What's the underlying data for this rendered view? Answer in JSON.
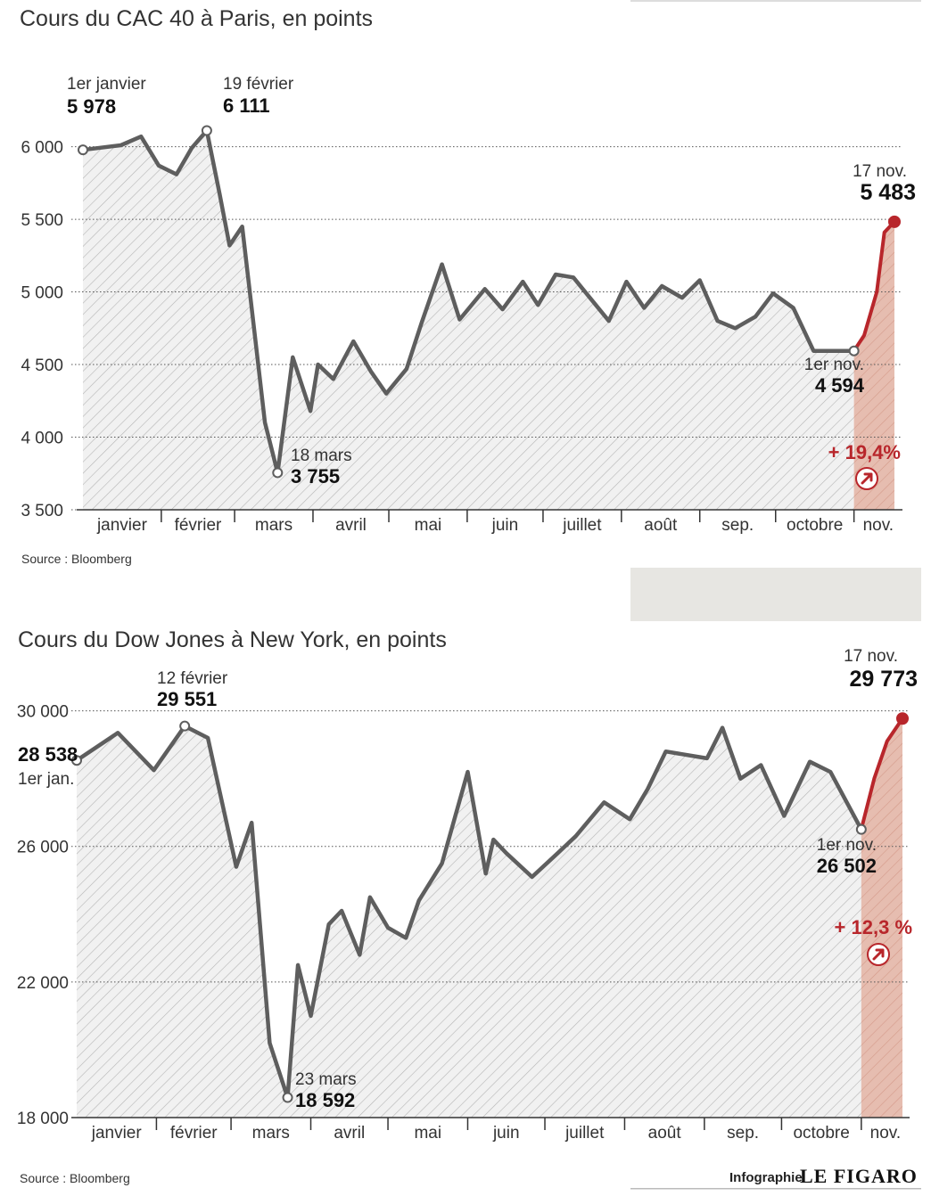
{
  "chart_data": [
    {
      "type": "area",
      "title": "Cours du CAC 40 à Paris, en points",
      "ylim": [
        3500,
        6200
      ],
      "yticks": [
        {
          "v": 3500,
          "label": "3 500"
        },
        {
          "v": 4000,
          "label": "4 000"
        },
        {
          "v": 4500,
          "label": "4 500"
        },
        {
          "v": 5000,
          "label": "5 000"
        },
        {
          "v": 5500,
          "label": "5 500"
        },
        {
          "v": 6000,
          "label": "6 000"
        }
      ],
      "months": [
        "janvier",
        "février",
        "mars",
        "avril",
        "mai",
        "juin",
        "juillet",
        "août",
        "sep.",
        "octobre",
        "nov."
      ],
      "grid": true,
      "series": [
        {
          "dates": [
            "2020-01-01",
            "2020-01-16",
            "2020-01-24",
            "2020-01-31",
            "2020-02-07",
            "2020-02-13",
            "2020-02-19",
            "2020-02-24",
            "2020-02-28",
            "2020-03-04",
            "2020-03-09",
            "2020-03-13",
            "2020-03-18",
            "2020-03-24",
            "2020-03-31",
            "2020-04-03",
            "2020-04-09",
            "2020-04-17",
            "2020-04-24",
            "2020-04-30",
            "2020-05-08",
            "2020-05-14",
            "2020-05-22",
            "2020-05-29",
            "2020-06-08",
            "2020-06-15",
            "2020-06-23",
            "2020-06-29",
            "2020-07-06",
            "2020-07-13",
            "2020-07-20",
            "2020-07-27",
            "2020-08-03",
            "2020-08-10",
            "2020-08-17",
            "2020-08-25",
            "2020-09-01",
            "2020-09-08",
            "2020-09-15",
            "2020-09-23",
            "2020-09-30",
            "2020-10-08",
            "2020-10-16",
            "2020-10-23",
            "2020-10-29",
            "2020-11-01"
          ],
          "values": [
            5978,
            6010,
            6070,
            5870,
            5810,
            5990,
            6111,
            5680,
            5320,
            5450,
            4700,
            4100,
            3755,
            4550,
            4180,
            4500,
            4400,
            4660,
            4450,
            4300,
            4470,
            4790,
            5190,
            4810,
            5020,
            4880,
            5070,
            4910,
            5120,
            5100,
            4950,
            4800,
            5070,
            4890,
            5040,
            4960,
            5080,
            4800,
            4750,
            4830,
            4990,
            4890,
            4594,
            4594,
            4594,
            4594
          ]
        },
        {
          "name": "hausse",
          "dates": [
            "2020-11-01",
            "2020-11-05",
            "2020-11-10",
            "2020-11-13",
            "2020-11-17"
          ],
          "values": [
            4594,
            4700,
            5000,
            5410,
            5483
          ]
        }
      ],
      "annotations": [
        {
          "date_label": "1er janvier",
          "value_label": "5 978"
        },
        {
          "date_label": "19 février",
          "value_label": "6 111"
        },
        {
          "date_label": "18 mars",
          "value_label": "3 755"
        },
        {
          "date_label": "1er nov.",
          "value_label": "4 594"
        },
        {
          "date_label": "17 nov.",
          "value_label": "5 483"
        }
      ],
      "change": "+ 19,4%",
      "source": "Source : Bloomberg"
    },
    {
      "type": "area",
      "title": "Cours du Dow Jones à New York, en points",
      "ylim": [
        18000,
        30200
      ],
      "yticks": [
        {
          "v": 18000,
          "label": "18 000"
        },
        {
          "v": 22000,
          "label": "22 000"
        },
        {
          "v": 26000,
          "label": "26 000"
        },
        {
          "v": 30000,
          "label": "30 000"
        }
      ],
      "months": [
        "janvier",
        "février",
        "mars",
        "avril",
        "mai",
        "juin",
        "juillet",
        "août",
        "sep.",
        "octobre",
        "nov."
      ],
      "grid": true,
      "series": [
        {
          "dates": [
            "2020-01-01",
            "2020-01-17",
            "2020-01-31",
            "2020-02-12",
            "2020-02-21",
            "2020-03-03",
            "2020-03-09",
            "2020-03-16",
            "2020-03-23",
            "2020-03-27",
            "2020-04-01",
            "2020-04-08",
            "2020-04-13",
            "2020-04-20",
            "2020-04-24",
            "2020-05-01",
            "2020-05-08",
            "2020-05-13",
            "2020-05-22",
            "2020-06-01",
            "2020-06-08",
            "2020-06-11",
            "2020-06-16",
            "2020-06-26",
            "2020-07-06",
            "2020-07-13",
            "2020-07-24",
            "2020-08-03",
            "2020-08-10",
            "2020-08-17",
            "2020-09-02",
            "2020-09-08",
            "2020-09-15",
            "2020-09-23",
            "2020-10-02",
            "2020-10-12",
            "2020-10-20",
            "2020-11-01"
          ],
          "values": [
            28538,
            29350,
            28250,
            29551,
            29200,
            25400,
            26700,
            20200,
            18592,
            22500,
            21000,
            23700,
            24100,
            22800,
            24500,
            23600,
            23300,
            24400,
            25500,
            28200,
            25200,
            26200,
            25800,
            25100,
            25800,
            26300,
            27300,
            26800,
            27700,
            28800,
            28600,
            29500,
            28000,
            28400,
            26900,
            28500,
            28200,
            26502
          ]
        },
        {
          "name": "hausse",
          "dates": [
            "2020-11-01",
            "2020-11-06",
            "2020-11-11",
            "2020-11-17"
          ],
          "values": [
            26502,
            28000,
            29100,
            29773
          ]
        }
      ],
      "annotations": [
        {
          "date_label": "1er jan.",
          "value_label": "28 538"
        },
        {
          "date_label": "12 février",
          "value_label": "29 551"
        },
        {
          "date_label": "23 mars",
          "value_label": "18 592"
        },
        {
          "date_label": "1er nov.",
          "value_label": "26 502"
        },
        {
          "date_label": "17 nov.",
          "value_label": "29 773"
        }
      ],
      "change": "+ 12,3 %",
      "source": "Source : Bloomberg"
    }
  ],
  "credit": {
    "prefix": "Infographie",
    "brand": "LE FIGARO"
  },
  "colors": {
    "line": "#5e5e5e",
    "rise": "#b8262b",
    "rise_fill": "#e3b4a5",
    "hatch": "#bdbdbd",
    "panel": "#e7e6e2"
  }
}
